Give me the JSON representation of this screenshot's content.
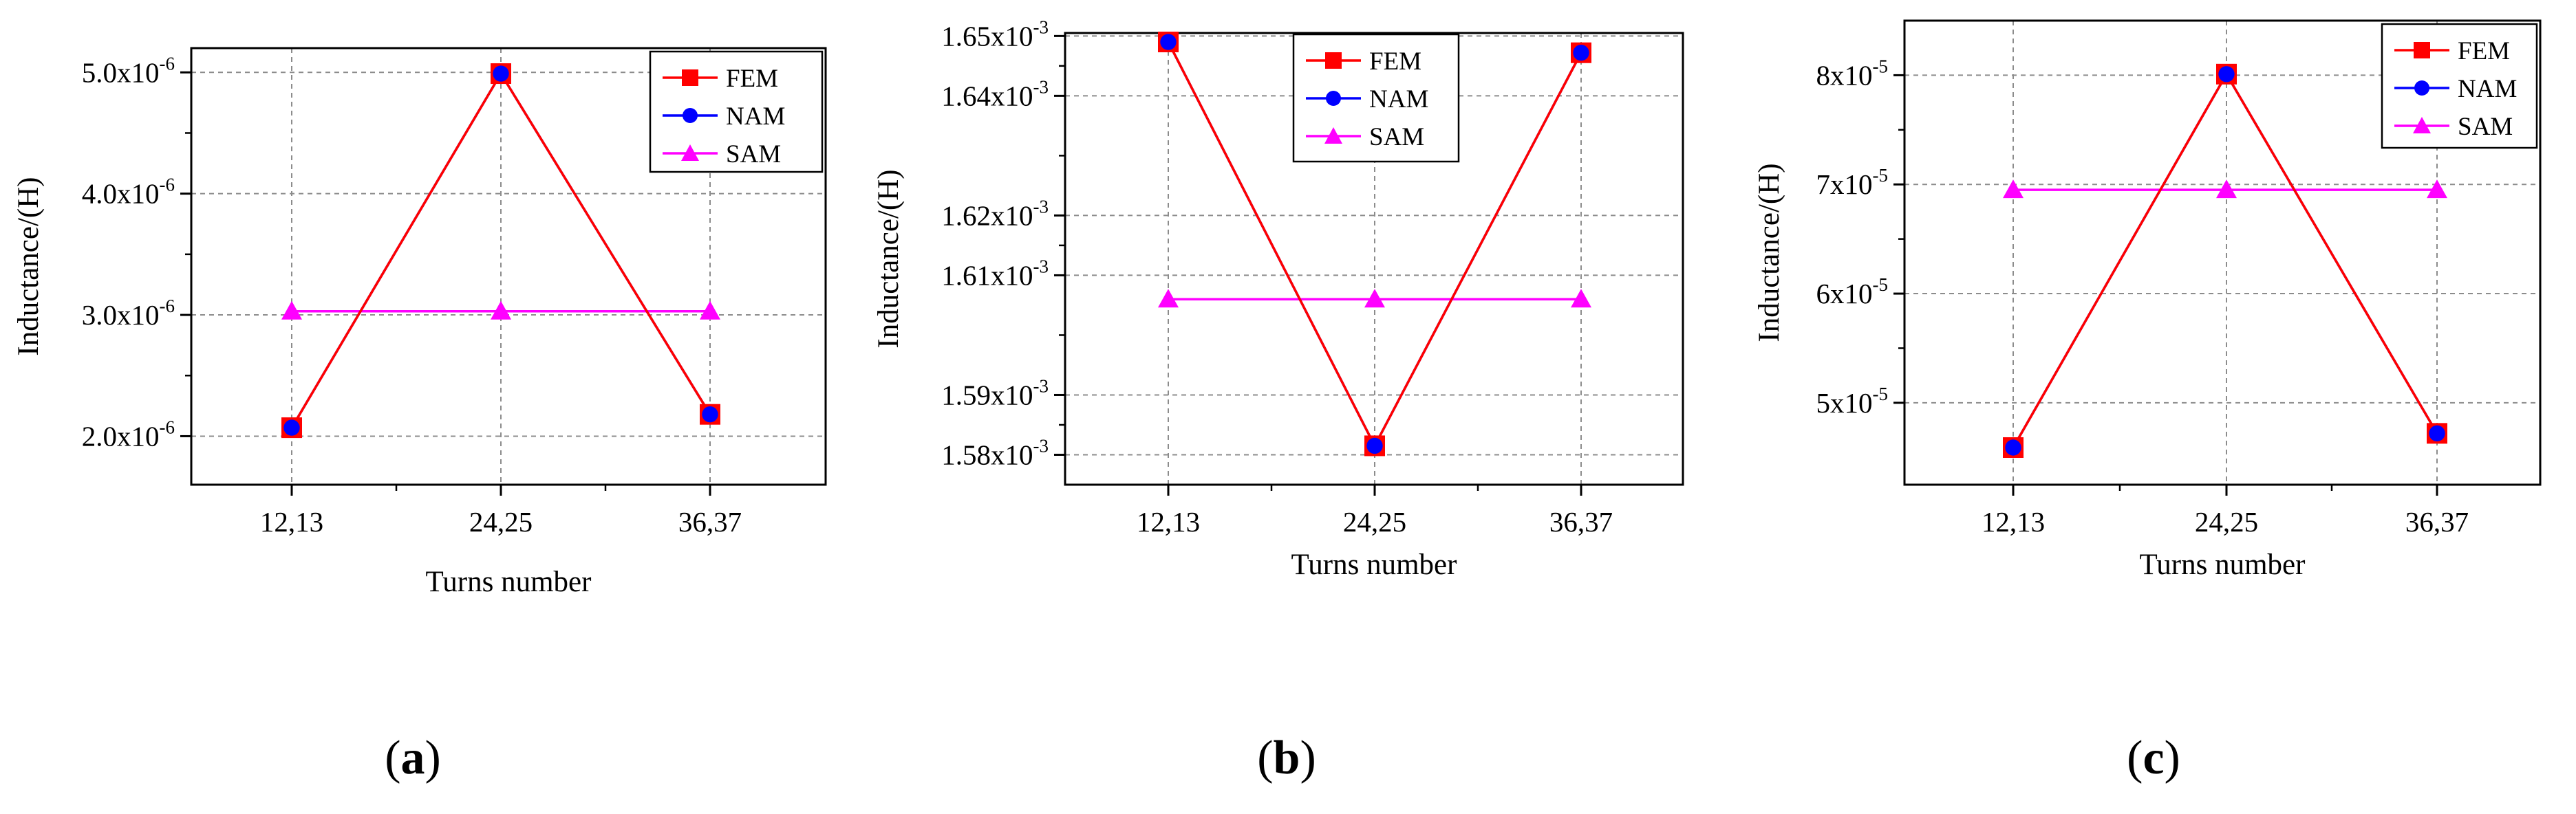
{
  "figure": {
    "colors": {
      "FEM": "#ff0000",
      "NAM": "#0000ff",
      "SAM": "#ff00ff",
      "grid": "#8c8c8c",
      "axis": "#000000"
    }
  },
  "chart_data": [
    {
      "type": "line",
      "panel": "a",
      "xlabel": "Turns number",
      "ylabel": "Inductance/(H)",
      "categories": [
        "12,13",
        "24,25",
        "36,37"
      ],
      "ylim": [
        1.6e-06,
        5.2e-06
      ],
      "yticks": [
        {
          "value": 2e-06,
          "mant": "2.0x10",
          "exp": "-6"
        },
        {
          "value": 3e-06,
          "mant": "3.0x10",
          "exp": "-6"
        },
        {
          "value": 4e-06,
          "mant": "4.0x10",
          "exp": "-6"
        },
        {
          "value": 5e-06,
          "mant": "5.0x10",
          "exp": "-6"
        }
      ],
      "legend": [
        "FEM",
        "NAM",
        "SAM"
      ],
      "series": [
        {
          "name": "FEM",
          "marker": "square",
          "values": [
            2.07e-06,
            4.99e-06,
            2.18e-06
          ]
        },
        {
          "name": "NAM",
          "marker": "circle",
          "values": [
            2.07e-06,
            4.99e-06,
            2.18e-06
          ]
        },
        {
          "name": "SAM",
          "marker": "triangle",
          "values": [
            3.03e-06,
            3.03e-06,
            3.03e-06
          ]
        }
      ],
      "label": {
        "open": "(",
        "letter": "a",
        "close": ")"
      }
    },
    {
      "type": "line",
      "panel": "b",
      "xlabel": "Turns number",
      "ylabel": "Inductance/(H)",
      "categories": [
        "12,13",
        "24,25",
        "36,37"
      ],
      "ylim": [
        0.001575,
        0.0016505
      ],
      "yticks": [
        {
          "value": 0.00158,
          "mant": "1.58x10",
          "exp": "-3"
        },
        {
          "value": 0.00159,
          "mant": "1.59x10",
          "exp": "-3"
        },
        {
          "value": 0.00161,
          "mant": "1.61x10",
          "exp": "-3"
        },
        {
          "value": 0.00162,
          "mant": "1.62x10",
          "exp": "-3"
        },
        {
          "value": 0.00164,
          "mant": "1.64x10",
          "exp": "-3"
        },
        {
          "value": 0.00165,
          "mant": "1.65x10",
          "exp": "-3"
        }
      ],
      "legend": [
        "FEM",
        "NAM",
        "SAM"
      ],
      "series": [
        {
          "name": "FEM",
          "marker": "square",
          "values": [
            0.001649,
            0.0015815,
            0.0016472
          ]
        },
        {
          "name": "NAM",
          "marker": "circle",
          "values": [
            0.001649,
            0.0015815,
            0.0016472
          ]
        },
        {
          "name": "SAM",
          "marker": "triangle",
          "values": [
            0.001606,
            0.001606,
            0.001606
          ]
        }
      ],
      "label": {
        "open": "(",
        "letter": "b",
        "close": ")"
      }
    },
    {
      "type": "line",
      "panel": "c",
      "xlabel": "Turns number",
      "ylabel": "Inductance/(H)",
      "categories": [
        "12,13",
        "24,25",
        "36,37"
      ],
      "ylim": [
        4.25e-05,
        8.5e-05
      ],
      "yticks": [
        {
          "value": 5e-05,
          "mant": "5x10",
          "exp": "-5"
        },
        {
          "value": 6e-05,
          "mant": "6x10",
          "exp": "-5"
        },
        {
          "value": 7e-05,
          "mant": "7x10",
          "exp": "-5"
        },
        {
          "value": 8e-05,
          "mant": "8x10",
          "exp": "-5"
        }
      ],
      "legend": [
        "FEM",
        "NAM",
        "SAM"
      ],
      "series": [
        {
          "name": "FEM",
          "marker": "square",
          "values": [
            4.59e-05,
            8.01e-05,
            4.72e-05
          ]
        },
        {
          "name": "NAM",
          "marker": "circle",
          "values": [
            4.59e-05,
            8.01e-05,
            4.72e-05
          ]
        },
        {
          "name": "SAM",
          "marker": "triangle",
          "values": [
            6.95e-05,
            6.95e-05,
            6.95e-05
          ]
        }
      ],
      "label": {
        "open": "(",
        "letter": "c",
        "close": ")"
      }
    }
  ]
}
